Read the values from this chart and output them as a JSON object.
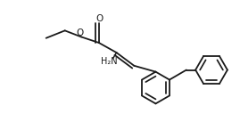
{
  "background_color": "#ffffff",
  "line_color": "#1a1a1a",
  "line_width": 1.3,
  "figsize": [
    2.69,
    1.46
  ],
  "dpi": 100,
  "xlim": [
    0,
    10
  ],
  "ylim": [
    0,
    5.5
  ]
}
